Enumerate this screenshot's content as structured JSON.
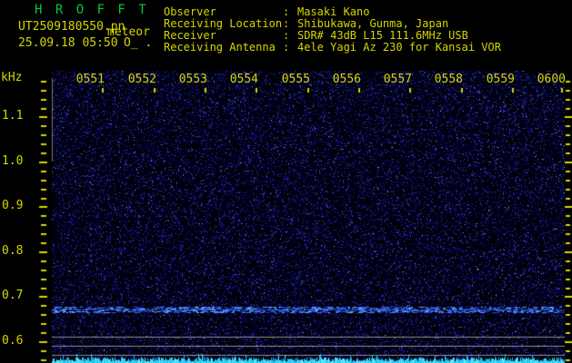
{
  "app": {
    "title": "H R O F F T",
    "filename": "UT2509180550.pn",
    "mode_label": "meteor",
    "datetime": "25.09.18 05:50",
    "status": "O_ ."
  },
  "info": {
    "colon": ":",
    "rows": [
      {
        "label": "Observer",
        "value": "Masaki Kano"
      },
      {
        "label": "Receiving Location",
        "value": "Shibukawa, Gunma, Japan"
      },
      {
        "label": "Receiver",
        "value": "SDR# 43dB L15 111.6MHz USB"
      },
      {
        "label": "Receiving Antenna",
        "value": "4ele Yagi Az 230 for Kansai VOR"
      }
    ]
  },
  "axes": {
    "freq_unit": "kHz",
    "freq_labels": [
      "1.1",
      "1.0",
      "0.9",
      "0.8",
      "0.7",
      "0.6"
    ],
    "time_labels": [
      "0551",
      "0552",
      "0553",
      "0554",
      "0555",
      "0556",
      "0557",
      "0558",
      "0559",
      "0600"
    ]
  },
  "colors": {
    "text_yellow": "#d6d600",
    "title_green": "#00cc33",
    "tick_yellow": "#d6d600",
    "gray_line": "#8f8f8f",
    "left_bar": "#747474",
    "carrier_cyan": "#35dcff",
    "carrier_base": "#18b8de",
    "noise_background": "#000006",
    "faint_band_blue": "#3c64e6"
  },
  "chart_data": {
    "type": "heatmap",
    "description": "HROFFT radio meteor observation spectrogram; dark-blue random noise field with no meteor echoes visible",
    "x_axis": {
      "unit": "UT time (HHMM)",
      "ticks": [
        "0551",
        "0552",
        "0553",
        "0554",
        "0555",
        "0556",
        "0557",
        "0558",
        "0559",
        "0600"
      ],
      "range": [
        "0550",
        "0600"
      ]
    },
    "y_axis": {
      "unit": "kHz",
      "ticks": [
        1.1,
        1.0,
        0.9,
        0.8,
        0.7,
        0.6
      ],
      "range": [
        0.55,
        1.2
      ]
    },
    "grid": false,
    "features": [
      {
        "type": "carrier_line",
        "freq_khz": 0.61,
        "appearance": "thin gray horizontal line, full width"
      },
      {
        "type": "carrier_line",
        "freq_khz": 0.59,
        "appearance": "thin gray horizontal line, full width"
      },
      {
        "type": "carrier_line",
        "freq_khz": 0.57,
        "appearance": "thin gray horizontal line, full width"
      },
      {
        "type": "broadband_signal",
        "freq_khz": 0.555,
        "appearance": "bright cyan spiky band along bottom edge, full width"
      },
      {
        "type": "faint_band",
        "freq_khz": 0.67,
        "appearance": "faint blue horizontal streaky band, full width"
      }
    ]
  }
}
